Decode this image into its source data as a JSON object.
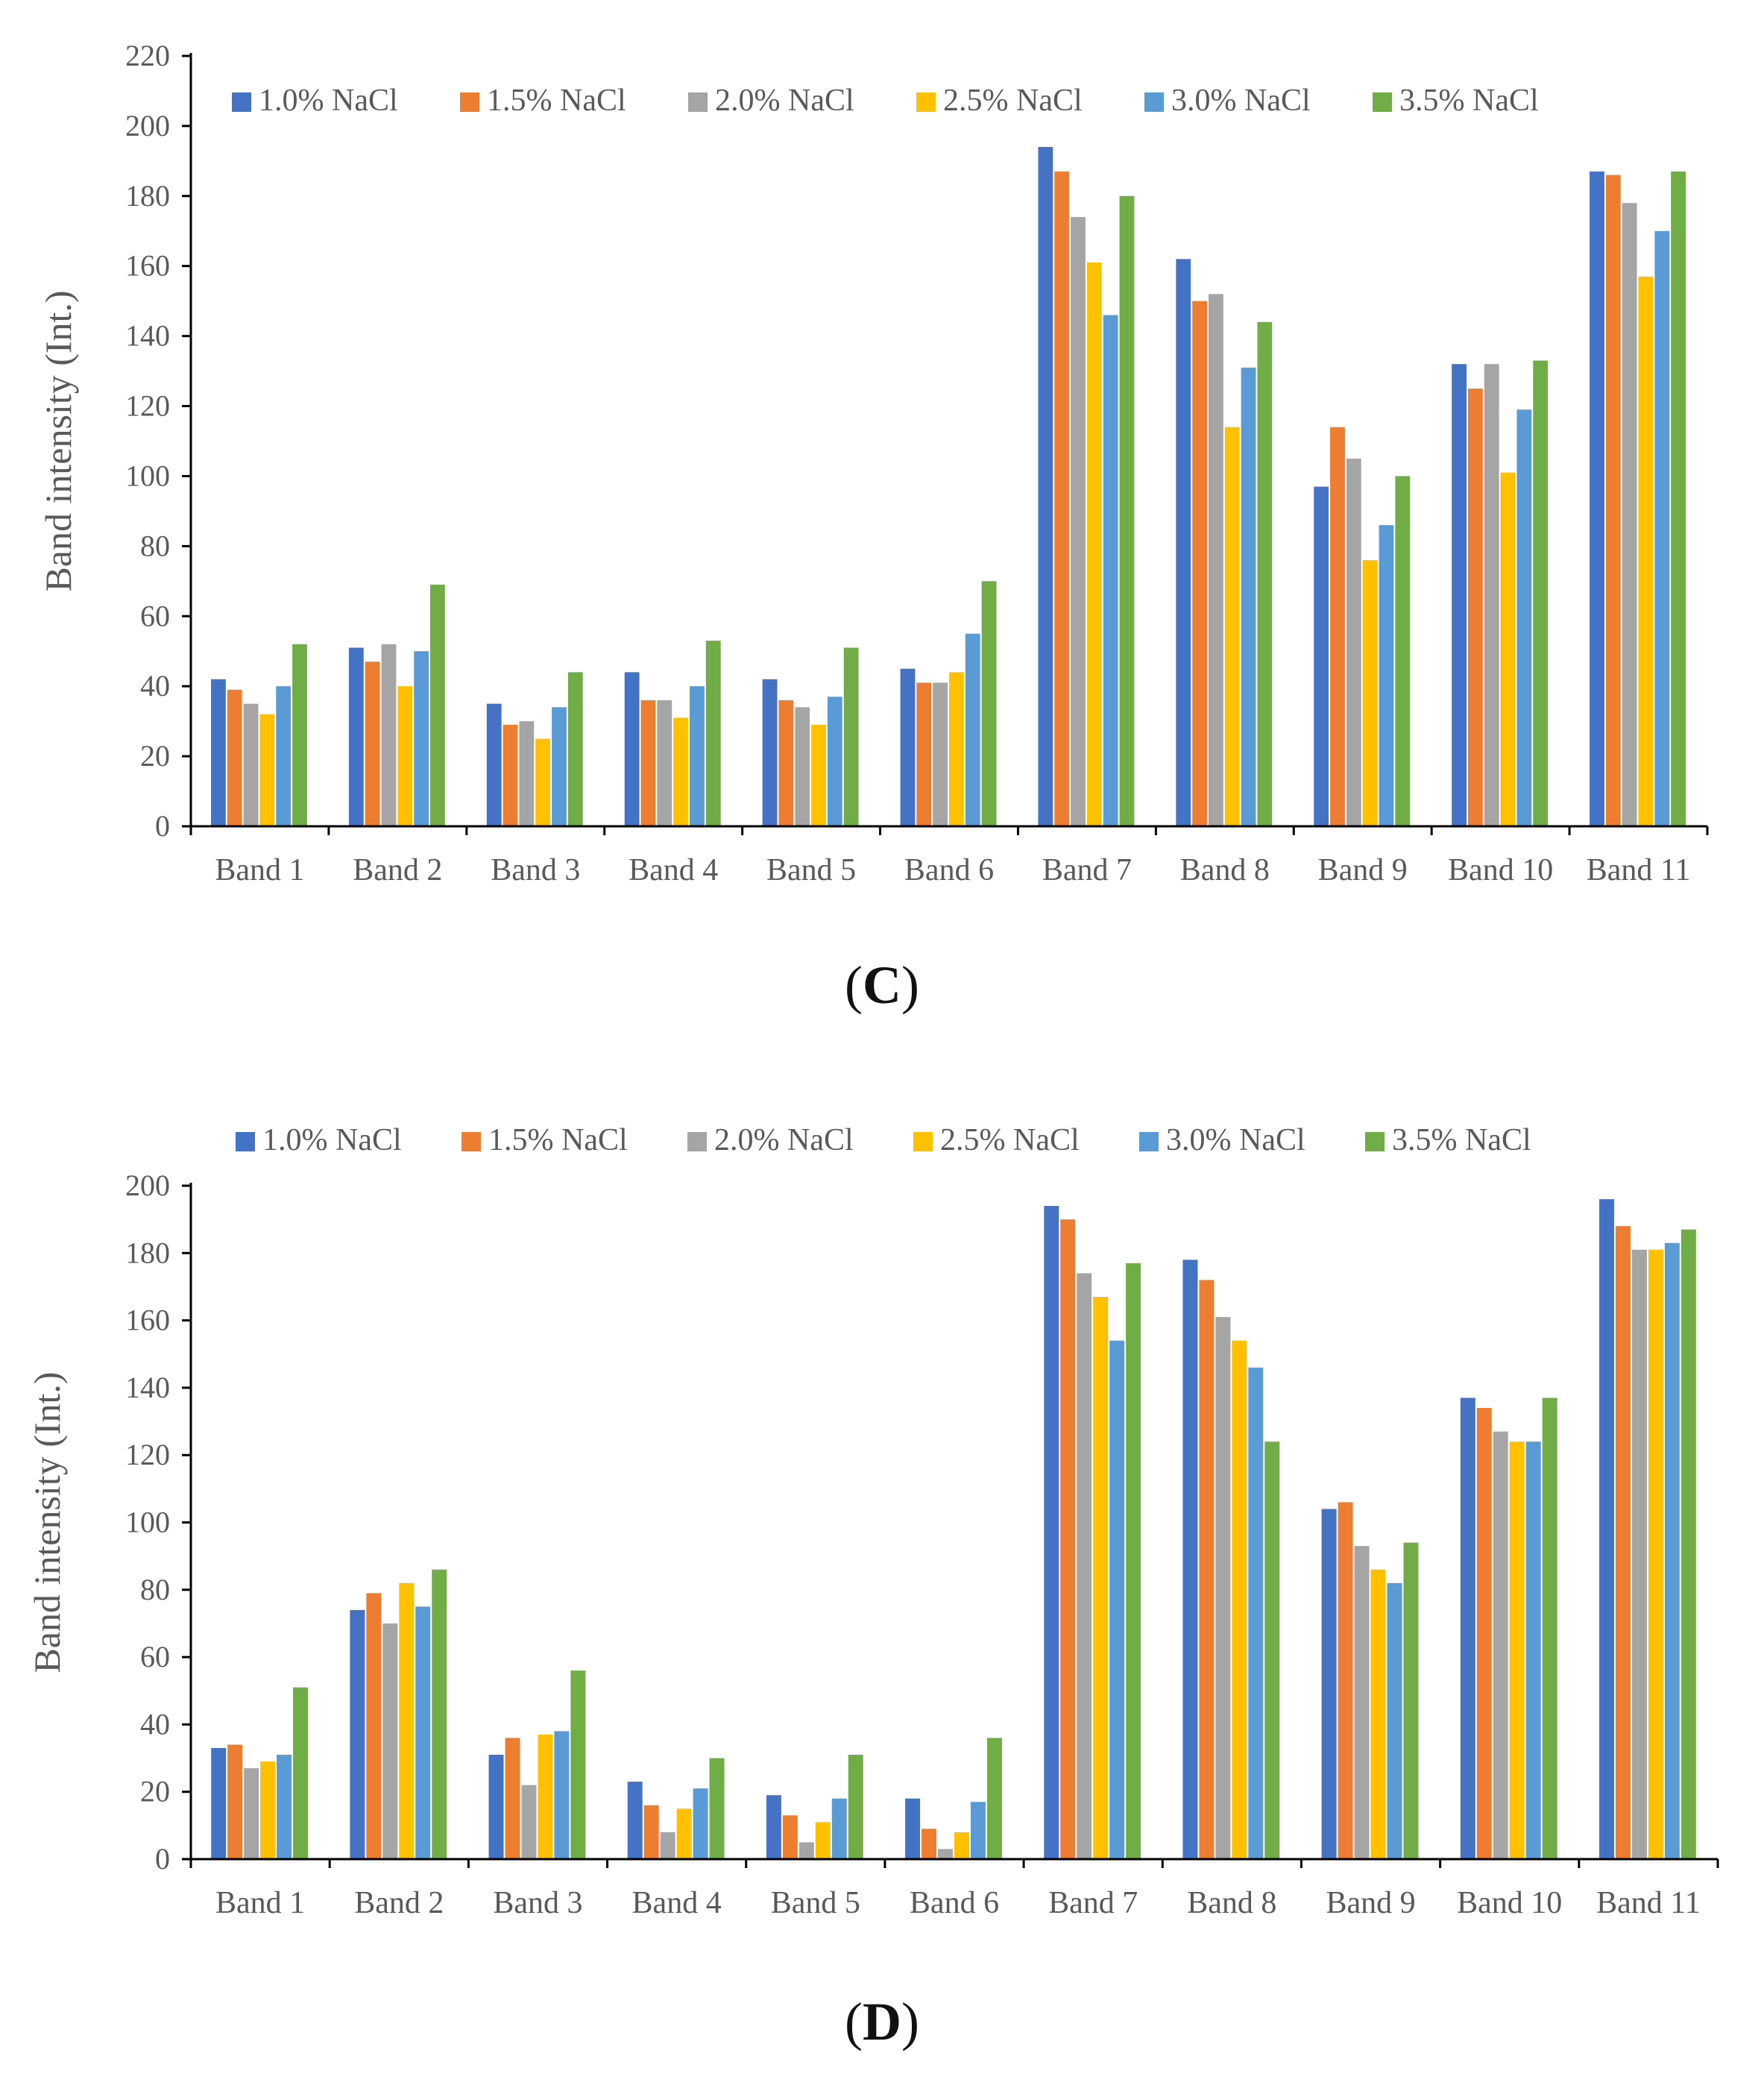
{
  "colors": {
    "series": [
      "#4472C4",
      "#ED7D31",
      "#A5A5A5",
      "#FFC000",
      "#5B9BD5",
      "#70AD47"
    ],
    "axis": "#000000",
    "text": "#595959"
  },
  "chart_data": [
    {
      "type": "bar",
      "panel_label": "C",
      "caption_open": "(",
      "caption_close": ")",
      "title": "",
      "xlabel": "",
      "ylabel": "Band intensity (Int.)",
      "ylim": [
        0,
        220
      ],
      "yticks": [
        "0",
        "20",
        "40",
        "60",
        "80",
        "100",
        "120",
        "140",
        "160",
        "180",
        "200",
        "220"
      ],
      "grid": false,
      "legend_position": "top",
      "categories": [
        "Band 1",
        "Band 2",
        "Band 3",
        "Band 4",
        "Band 5",
        "Band 6",
        "Band 7",
        "Band 8",
        "Band 9",
        "Band 10",
        "Band 11"
      ],
      "series": [
        {
          "name": "1.0% NaCl",
          "values": [
            42,
            51,
            35,
            44,
            42,
            45,
            194,
            162,
            97,
            132,
            187
          ]
        },
        {
          "name": "1.5% NaCl",
          "values": [
            39,
            47,
            29,
            36,
            36,
            41,
            187,
            150,
            114,
            125,
            186
          ]
        },
        {
          "name": "2.0% NaCl",
          "values": [
            35,
            52,
            30,
            36,
            34,
            41,
            174,
            152,
            105,
            132,
            178
          ]
        },
        {
          "name": "2.5% NaCl",
          "values": [
            32,
            40,
            25,
            31,
            29,
            44,
            161,
            114,
            76,
            101,
            157
          ]
        },
        {
          "name": "3.0% NaCl",
          "values": [
            40,
            50,
            34,
            40,
            37,
            55,
            146,
            131,
            86,
            119,
            170
          ]
        },
        {
          "name": "3.5% NaCl",
          "values": [
            52,
            69,
            44,
            53,
            51,
            70,
            180,
            144,
            100,
            133,
            187
          ]
        }
      ]
    },
    {
      "type": "bar",
      "panel_label": "D",
      "caption_open": "(",
      "caption_close": ")",
      "title": "",
      "xlabel": "",
      "ylabel": "Band intensity (Int.)",
      "ylim": [
        0,
        200
      ],
      "yticks": [
        "0",
        "20",
        "40",
        "60",
        "80",
        "100",
        "120",
        "140",
        "160",
        "180",
        "200"
      ],
      "grid": false,
      "legend_position": "top",
      "categories": [
        "Band 1",
        "Band 2",
        "Band 3",
        "Band 4",
        "Band 5",
        "Band 6",
        "Band 7",
        "Band 8",
        "Band 9",
        "Band 10",
        "Band 11"
      ],
      "series": [
        {
          "name": "1.0% NaCl",
          "values": [
            33,
            74,
            31,
            23,
            19,
            18,
            194,
            178,
            104,
            137,
            196
          ]
        },
        {
          "name": "1.5% NaCl",
          "values": [
            34,
            79,
            36,
            16,
            13,
            9,
            190,
            172,
            106,
            134,
            188
          ]
        },
        {
          "name": "2.0% NaCl",
          "values": [
            27,
            70,
            22,
            8,
            5,
            3,
            174,
            161,
            93,
            127,
            181
          ]
        },
        {
          "name": "2.5% NaCl",
          "values": [
            29,
            82,
            37,
            15,
            11,
            8,
            167,
            154,
            86,
            124,
            181
          ]
        },
        {
          "name": "3.0% NaCl",
          "values": [
            31,
            75,
            38,
            21,
            18,
            17,
            154,
            146,
            82,
            124,
            183
          ]
        },
        {
          "name": "3.5% NaCl",
          "values": [
            51,
            86,
            56,
            30,
            31,
            36,
            177,
            124,
            94,
            137,
            187
          ]
        }
      ]
    }
  ]
}
